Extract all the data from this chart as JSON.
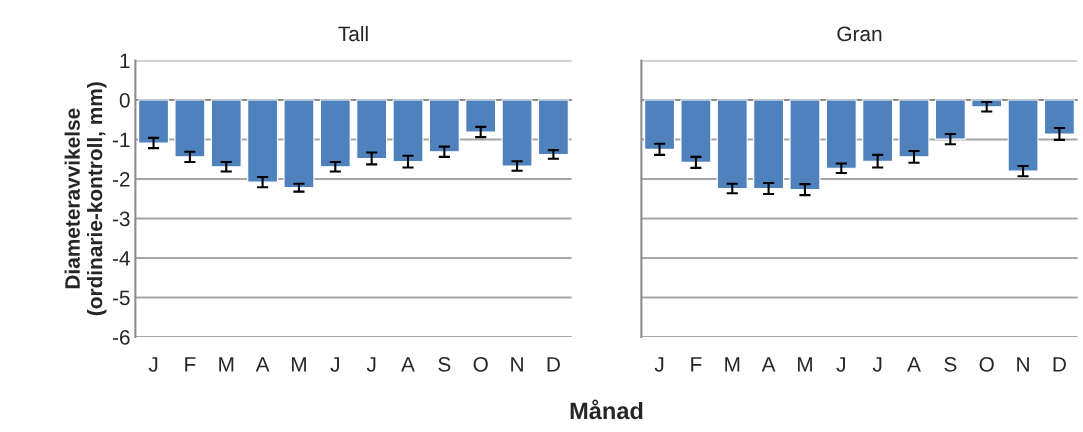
{
  "chart_data": [
    {
      "type": "bar",
      "title": "Tall",
      "ylabel": "Diameteravvikelse\n(ordinarie-kontroll, mm)",
      "categories": [
        "J",
        "F",
        "M",
        "A",
        "M",
        "J",
        "J",
        "A",
        "S",
        "O",
        "N",
        "D"
      ],
      "series": [
        {
          "color": "#4f81bd",
          "values": [
            -1.09,
            -1.44,
            -1.69,
            -2.08,
            -2.22,
            -1.69,
            -1.48,
            -1.56,
            -1.31,
            -0.81,
            -1.67,
            -1.38
          ],
          "errors": [
            0.13,
            0.13,
            0.12,
            0.13,
            0.1,
            0.12,
            0.15,
            0.15,
            0.13,
            0.13,
            0.12,
            0.11
          ]
        }
      ],
      "ylim": [
        -6,
        1
      ],
      "yticks": [
        -6,
        -5,
        -4,
        -3,
        -2,
        -1,
        0,
        1
      ],
      "grid": "y"
    },
    {
      "type": "bar",
      "title": "Gran",
      "xlabel": "Månad",
      "categories": [
        "J",
        "F",
        "M",
        "A",
        "M",
        "J",
        "J",
        "A",
        "S",
        "O",
        "N",
        "D"
      ],
      "series": [
        {
          "color": "#4f81bd",
          "values": [
            -1.25,
            -1.58,
            -2.24,
            -2.24,
            -2.27,
            -1.73,
            -1.55,
            -1.44,
            -0.99,
            -0.17,
            -1.8,
            -0.86
          ],
          "errors": [
            0.14,
            0.14,
            0.12,
            0.14,
            0.14,
            0.12,
            0.16,
            0.15,
            0.13,
            0.12,
            0.13,
            0.15
          ]
        }
      ],
      "ylim": [
        -6,
        1
      ],
      "yticks": [
        -6,
        -5,
        -4,
        -3,
        -2,
        -1,
        0,
        1
      ],
      "grid": "y",
      "tick_labels": "x"
    }
  ]
}
